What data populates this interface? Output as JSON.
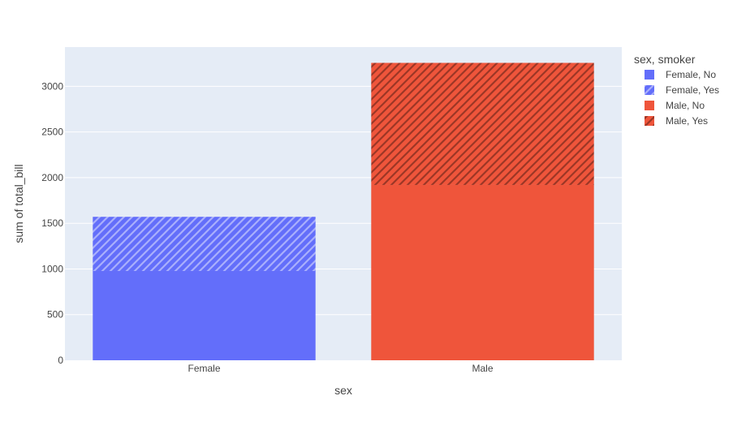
{
  "chart_data": {
    "type": "bar",
    "barmode": "stack",
    "categories": [
      "Female",
      "Male"
    ],
    "series": [
      {
        "name": "Female, No",
        "category": "Female",
        "value": 977.68,
        "color": "#636efa",
        "pattern": "none"
      },
      {
        "name": "Female, Yes",
        "category": "Female",
        "value": 593.27,
        "color": "#636efa",
        "pattern": "hatch"
      },
      {
        "name": "Male, No",
        "category": "Male",
        "value": 1919.75,
        "color": "#ef553b",
        "pattern": "none"
      },
      {
        "name": "Male, Yes",
        "category": "Male",
        "value": 1337.07,
        "color": "#ef553b",
        "pattern": "hatch"
      }
    ],
    "xlabel": "sex",
    "ylabel": "sum of total_bill",
    "ylim": [
      0,
      3430
    ],
    "yticks": [
      0,
      500,
      1000,
      1500,
      2000,
      2500,
      3000
    ],
    "grid": true,
    "legend": {
      "title": "sex, smoker",
      "placement": "right"
    },
    "plot_bgcolor": "#e5ecf6"
  }
}
